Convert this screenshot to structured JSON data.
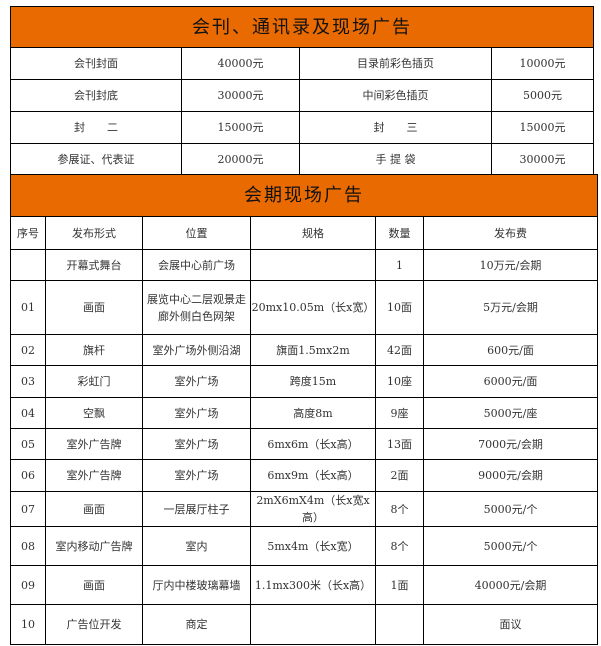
{
  "colors": {
    "header_bg": "#E96A00"
  },
  "publication_ads": {
    "title": "会刊、通讯录及现场广告",
    "rows": [
      [
        "会刊封面",
        "40000元",
        "目录前彩色插页",
        "10000元"
      ],
      [
        "会刊封底",
        "30000元",
        "中间彩色插页",
        "5000元"
      ],
      [
        "封　　二",
        "15000元",
        "封　　三",
        "15000元"
      ],
      [
        "参展证、代表证",
        "20000元",
        "手 提 袋",
        "30000元"
      ]
    ]
  },
  "onsite_ads": {
    "title": "会期现场广告",
    "headers": [
      "序号",
      "发布形式",
      "位置",
      "规格",
      "数量",
      "发布费"
    ],
    "rows": [
      [
        "",
        "开幕式舞台",
        "会展中心前广场",
        "",
        "1",
        "10万元/会期"
      ],
      [
        "01",
        "画面",
        "展览中心二层观景走廊外侧白色网架",
        "20mx10.05m（长x宽）",
        "10面",
        "5万元/会期"
      ],
      [
        "02",
        "旗杆",
        "室外广场外侧沿湖",
        "旗面1.5mx2m",
        "42面",
        "600元/面"
      ],
      [
        "03",
        "彩虹门",
        "室外广场",
        "跨度15m",
        "10座",
        "6000元/面"
      ],
      [
        "04",
        "空飘",
        "室外广场",
        "高度8m",
        "9座",
        "5000元/座"
      ],
      [
        "05",
        "室外广告牌",
        "室外广场",
        "6mx6m（长x高）",
        "13面",
        "7000元/会期"
      ],
      [
        "06",
        "室外广告牌",
        "室外广场",
        "6mx9m（长x高）",
        "2面",
        "9000元/会期"
      ],
      [
        "07",
        "画面",
        "一层展厅柱子",
        "2mX6mX4m（长x宽x高）",
        "8个",
        "5000元/个"
      ],
      [
        "08",
        "室内移动广告牌",
        "室内",
        "5mx4m（长x宽）",
        "8个",
        "5000元/个"
      ],
      [
        "09",
        "画面",
        "厅内中楼玻璃幕墙",
        "1.1mx300米（长x高）",
        "1面",
        "40000元/会期"
      ],
      [
        "10",
        "广告位开发",
        "商定",
        "",
        "",
        "面议"
      ]
    ]
  }
}
